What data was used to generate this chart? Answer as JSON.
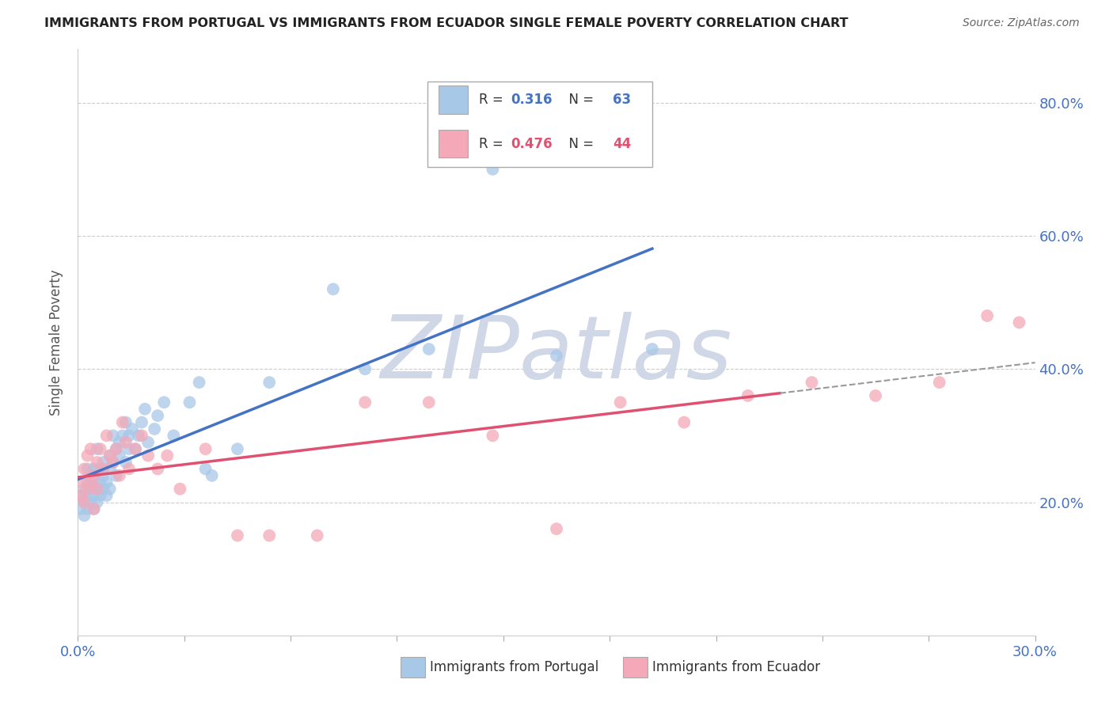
{
  "title": "IMMIGRANTS FROM PORTUGAL VS IMMIGRANTS FROM ECUADOR SINGLE FEMALE POVERTY CORRELATION CHART",
  "source": "Source: ZipAtlas.com",
  "ylabel": "Single Female Poverty",
  "xlim": [
    0.0,
    0.3
  ],
  "ylim": [
    0.0,
    0.88
  ],
  "xtick_labels": [
    "0.0%",
    "30.0%"
  ],
  "ytick_positions": [
    0.2,
    0.4,
    0.6,
    0.8
  ],
  "ytick_labels": [
    "20.0%",
    "40.0%",
    "60.0%",
    "80.0%"
  ],
  "portugal_color": "#a8c8e8",
  "ecuador_color": "#f4a8b8",
  "portugal_line_color": "#4472c4",
  "ecuador_line_color": "#e05070",
  "legend_label_portugal": "Immigrants from Portugal",
  "legend_label_ecuador": "Immigrants from Ecuador",
  "watermark": "ZIPatlas",
  "watermark_color": "#d0d8e8",
  "background_color": "#ffffff",
  "grid_color": "#cccccc",
  "portugal_x": [
    0.001,
    0.001,
    0.002,
    0.002,
    0.002,
    0.003,
    0.003,
    0.003,
    0.003,
    0.004,
    0.004,
    0.004,
    0.005,
    0.005,
    0.005,
    0.005,
    0.006,
    0.006,
    0.006,
    0.007,
    0.007,
    0.007,
    0.008,
    0.008,
    0.008,
    0.009,
    0.009,
    0.01,
    0.01,
    0.01,
    0.011,
    0.011,
    0.012,
    0.012,
    0.013,
    0.013,
    0.014,
    0.015,
    0.015,
    0.016,
    0.016,
    0.017,
    0.018,
    0.019,
    0.02,
    0.021,
    0.022,
    0.024,
    0.025,
    0.027,
    0.03,
    0.035,
    0.038,
    0.04,
    0.042,
    0.05,
    0.06,
    0.08,
    0.09,
    0.11,
    0.13,
    0.15,
    0.18
  ],
  "portugal_y": [
    0.19,
    0.21,
    0.2,
    0.22,
    0.18,
    0.23,
    0.25,
    0.19,
    0.21,
    0.22,
    0.2,
    0.24,
    0.21,
    0.23,
    0.19,
    0.25,
    0.22,
    0.2,
    0.28,
    0.23,
    0.25,
    0.21,
    0.24,
    0.22,
    0.26,
    0.23,
    0.21,
    0.25,
    0.27,
    0.22,
    0.26,
    0.3,
    0.28,
    0.24,
    0.27,
    0.29,
    0.3,
    0.26,
    0.32,
    0.28,
    0.3,
    0.31,
    0.28,
    0.3,
    0.32,
    0.34,
    0.29,
    0.31,
    0.33,
    0.35,
    0.3,
    0.35,
    0.38,
    0.25,
    0.24,
    0.28,
    0.38,
    0.52,
    0.4,
    0.43,
    0.7,
    0.42,
    0.43
  ],
  "ecuador_x": [
    0.001,
    0.001,
    0.002,
    0.002,
    0.003,
    0.003,
    0.004,
    0.004,
    0.005,
    0.005,
    0.006,
    0.006,
    0.007,
    0.008,
    0.009,
    0.01,
    0.011,
    0.012,
    0.013,
    0.014,
    0.015,
    0.016,
    0.018,
    0.02,
    0.022,
    0.025,
    0.028,
    0.032,
    0.04,
    0.05,
    0.06,
    0.075,
    0.09,
    0.11,
    0.13,
    0.15,
    0.17,
    0.19,
    0.21,
    0.23,
    0.25,
    0.27,
    0.285,
    0.295
  ],
  "ecuador_y": [
    0.21,
    0.23,
    0.2,
    0.25,
    0.22,
    0.27,
    0.23,
    0.28,
    0.24,
    0.19,
    0.26,
    0.22,
    0.28,
    0.25,
    0.3,
    0.27,
    0.26,
    0.28,
    0.24,
    0.32,
    0.29,
    0.25,
    0.28,
    0.3,
    0.27,
    0.25,
    0.27,
    0.22,
    0.28,
    0.15,
    0.15,
    0.15,
    0.35,
    0.35,
    0.3,
    0.16,
    0.35,
    0.32,
    0.36,
    0.38,
    0.36,
    0.38,
    0.48,
    0.47
  ]
}
